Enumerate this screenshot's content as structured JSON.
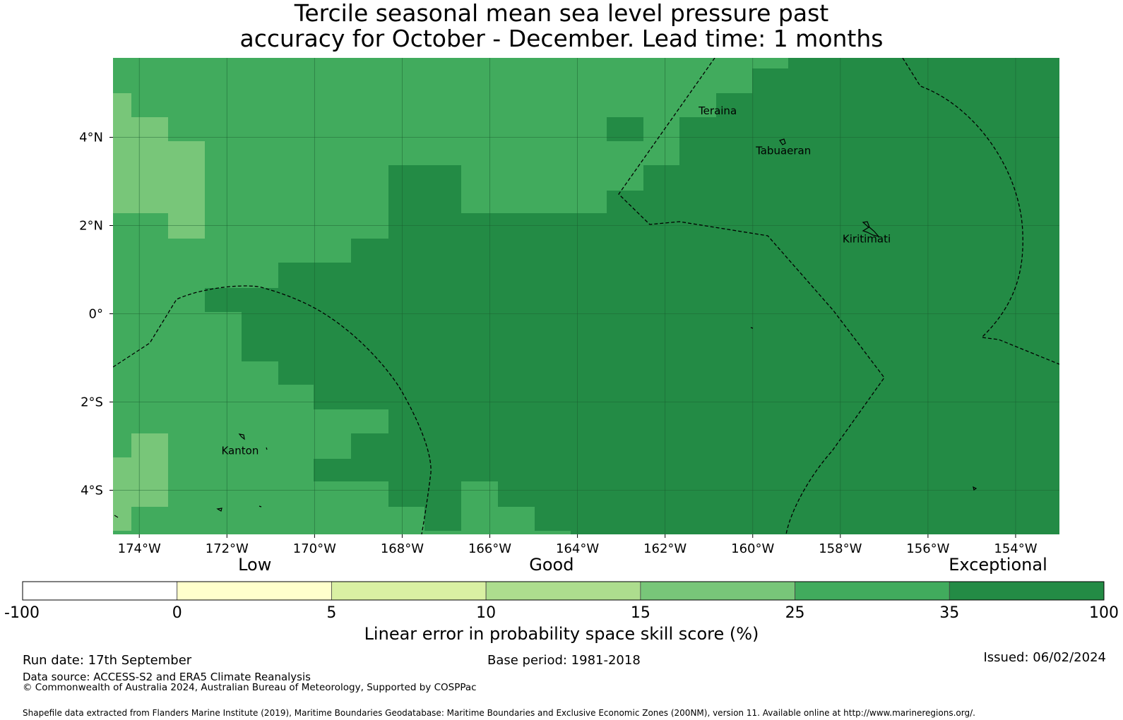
{
  "title": {
    "line1": "Tercile seasonal mean sea level pressure past",
    "line2": "accuracy for October - December. Lead time: 1 months"
  },
  "map": {
    "lon_range": [
      -174.6,
      -153.0
    ],
    "lat_range": [
      -5.0,
      5.8
    ],
    "x_ticks": [
      {
        "lon": -174,
        "label": "174°W"
      },
      {
        "lon": -172,
        "label": "172°W"
      },
      {
        "lon": -170,
        "label": "170°W"
      },
      {
        "lon": -168,
        "label": "168°W"
      },
      {
        "lon": -166,
        "label": "166°W"
      },
      {
        "lon": -164,
        "label": "164°W"
      },
      {
        "lon": -162,
        "label": "162°W"
      },
      {
        "lon": -160,
        "label": "160°W"
      },
      {
        "lon": -158,
        "label": "158°W"
      },
      {
        "lon": -156,
        "label": "156°W"
      },
      {
        "lon": -154,
        "label": "154°W"
      }
    ],
    "y_ticks": [
      {
        "lat": 4,
        "label": "4°N"
      },
      {
        "lat": 2,
        "label": "2°N"
      },
      {
        "lat": 0,
        "label": "0°"
      },
      {
        "lat": -2,
        "label": "2°S"
      },
      {
        "lat": -4,
        "label": "4°S"
      }
    ],
    "places": [
      {
        "name": "Teraina",
        "lon": -160.8,
        "lat": 4.6
      },
      {
        "name": "Tabuaeran",
        "lon": -159.3,
        "lat": 3.7
      },
      {
        "name": "Kiritimati",
        "lon": -157.4,
        "lat": 1.7
      },
      {
        "name": "Kanton",
        "lon": -171.7,
        "lat": -3.1
      }
    ],
    "colors": {
      "very_high": "#238b45",
      "high": "#41ab5d",
      "medium": "#78c679",
      "grid": "#1a5e30"
    }
  },
  "colorbar": {
    "categories": [
      {
        "label": "Low",
        "value": 0
      },
      {
        "label": "Good",
        "value": 15
      },
      {
        "label": "Exceptional",
        "value": 100
      }
    ],
    "bins": [
      {
        "from": "-100",
        "to": "0",
        "color": "#ffffff"
      },
      {
        "from": "0",
        "to": "5",
        "color": "#ffffcc"
      },
      {
        "from": "5",
        "to": "10",
        "color": "#d9f0a3"
      },
      {
        "from": "10",
        "to": "15",
        "color": "#addd8e"
      },
      {
        "from": "15",
        "to": "25",
        "color": "#78c679"
      },
      {
        "from": "25",
        "to": "35",
        "color": "#41ab5d"
      },
      {
        "from": "35",
        "to": "100",
        "color": "#238b45"
      }
    ],
    "tick_labels": [
      "-100",
      "0",
      "5",
      "10",
      "15",
      "25",
      "35",
      "100"
    ],
    "label": "Linear error in probability space skill score (%)"
  },
  "footer": {
    "run_date": "Run date: 17th September",
    "base_period": "Base period: 1981-2018",
    "issued": "Issued: 06/02/2024",
    "data_source": "Data source: ACCESS-S2 and ERA5 Climate Reanalysis",
    "copyright": "© Commonwealth of Australia 2024, Australian Bureau of Meteorology, Supported by COSPPac",
    "shapefile": "Shapefile data extracted from Flanders Marine Institute (2019), Maritime Boundaries Geodatabase: Maritime Boundaries and Exclusive Economic Zones (200NM), version 11. Available online at http://www.marineregions.org/."
  }
}
